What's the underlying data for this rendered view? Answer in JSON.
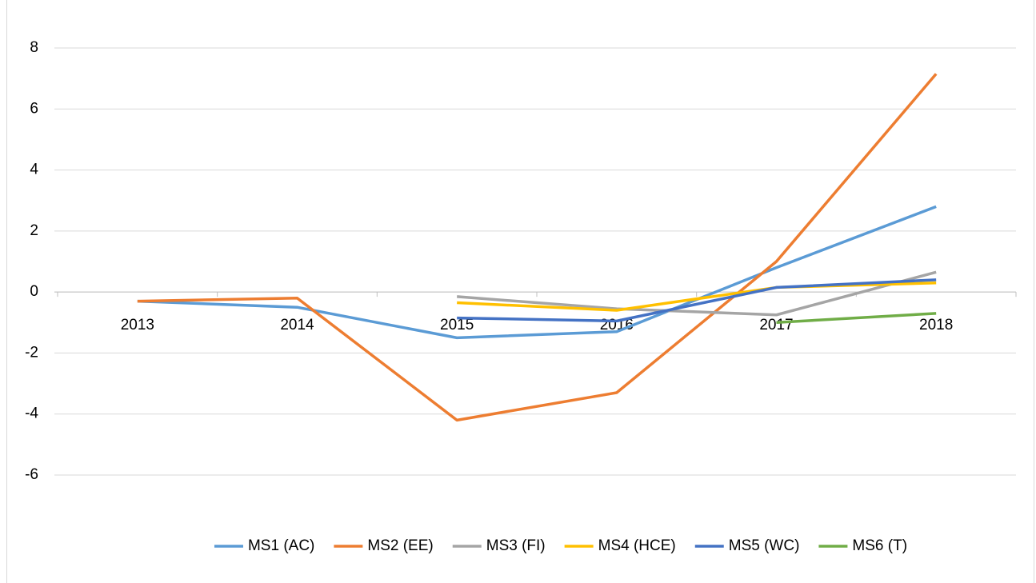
{
  "chart_data": {
    "type": "line",
    "categories": [
      "2013",
      "2014",
      "2015",
      "2016",
      "2017",
      "2018"
    ],
    "series": [
      {
        "name": "MS1 (AC)",
        "color": "#5b9bd5",
        "values": [
          -0.3,
          -0.5,
          -1.5,
          -1.3,
          0.8,
          2.8
        ]
      },
      {
        "name": "MS2 (EE)",
        "color": "#ed7d31",
        "values": [
          -0.3,
          -0.2,
          -4.2,
          -3.3,
          1.0,
          7.15
        ]
      },
      {
        "name": "MS3 (FI)",
        "color": "#a5a5a5",
        "values": [
          null,
          null,
          -0.15,
          -0.55,
          -0.75,
          0.65
        ]
      },
      {
        "name": "MS4 (HCE)",
        "color": "#ffc000",
        "values": [
          null,
          null,
          -0.35,
          -0.6,
          0.15,
          0.3
        ]
      },
      {
        "name": "MS5 (WC)",
        "color": "#4472c4",
        "values": [
          null,
          null,
          -0.85,
          -0.95,
          0.15,
          0.4
        ]
      },
      {
        "name": "MS6 (T)",
        "color": "#70ad47",
        "values": [
          null,
          null,
          null,
          null,
          -1.0,
          -0.7
        ]
      }
    ],
    "ylim": [
      -6,
      8
    ],
    "yticks": [
      -6,
      -4,
      -2,
      0,
      2,
      4,
      6,
      8
    ],
    "grid": true,
    "legend": "bottom"
  }
}
